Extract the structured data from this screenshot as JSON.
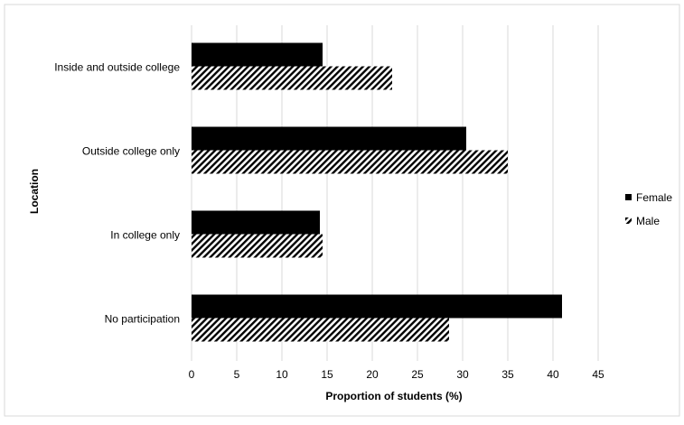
{
  "chart_data": {
    "type": "bar",
    "orientation": "horizontal",
    "categories": [
      "No participation",
      "In college only",
      "Outside college only",
      "Inside and outside college"
    ],
    "series": [
      {
        "name": "Female",
        "values": [
          41,
          14.2,
          30.4,
          14.5
        ],
        "fill": "solid",
        "color": "#000000"
      },
      {
        "name": "Male",
        "values": [
          28.5,
          14.5,
          35,
          22.2
        ],
        "fill": "hatched",
        "color": "#000000"
      }
    ],
    "xlabel": "Proportion of students (%)",
    "ylabel": "Location",
    "xlim": [
      0,
      45
    ],
    "xticks": [
      0,
      5,
      10,
      15,
      20,
      25,
      30,
      35,
      40,
      45
    ],
    "grid": "vertical",
    "legend_position": "right"
  }
}
